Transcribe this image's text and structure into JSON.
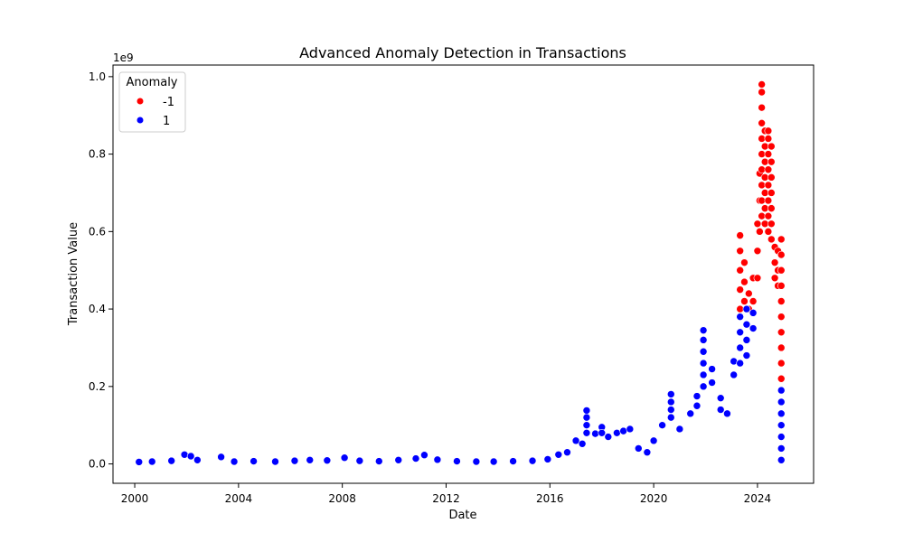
{
  "chart_data": {
    "type": "scatter",
    "title": "Advanced Anomaly Detection in Transactions",
    "xlabel": "Date",
    "ylabel": "Transaction Value",
    "y_scale_label": "1e9",
    "xlim": [
      "1999-03-01",
      "2026-03-01"
    ],
    "ylim": [
      -0.05,
      1.03
    ],
    "y_unit_multiplier": 1000000000,
    "x_ticks": [
      "2000",
      "2004",
      "2008",
      "2012",
      "2016",
      "2020",
      "2024"
    ],
    "y_ticks": [
      "0.0",
      "0.2",
      "0.4",
      "0.6",
      "0.8",
      "1.0"
    ],
    "grid": false,
    "legend": {
      "title": "Anomaly",
      "placement": "top-left",
      "entries": [
        {
          "label": "-1",
          "color": "#ff0000"
        },
        {
          "label": "1",
          "color": "#0000ff"
        }
      ]
    },
    "series": [
      {
        "name": "-1",
        "color": "#ff0000",
        "points": [
          [
            "2023-05-01",
            0.59
          ],
          [
            "2023-05-01",
            0.55
          ],
          [
            "2023-05-01",
            0.5
          ],
          [
            "2023-05-01",
            0.45
          ],
          [
            "2023-05-01",
            0.4
          ],
          [
            "2023-07-01",
            0.52
          ],
          [
            "2023-07-01",
            0.47
          ],
          [
            "2023-07-01",
            0.42
          ],
          [
            "2023-09-01",
            0.44
          ],
          [
            "2023-09-01",
            0.4
          ],
          [
            "2023-11-01",
            0.48
          ],
          [
            "2023-11-01",
            0.42
          ],
          [
            "2024-01-01",
            0.62
          ],
          [
            "2024-01-01",
            0.55
          ],
          [
            "2024-01-01",
            0.48
          ],
          [
            "2024-02-01",
            0.75
          ],
          [
            "2024-02-01",
            0.68
          ],
          [
            "2024-02-01",
            0.6
          ],
          [
            "2024-03-01",
            0.98
          ],
          [
            "2024-03-01",
            0.96
          ],
          [
            "2024-03-01",
            0.92
          ],
          [
            "2024-03-01",
            0.88
          ],
          [
            "2024-03-01",
            0.84
          ],
          [
            "2024-03-01",
            0.8
          ],
          [
            "2024-03-01",
            0.76
          ],
          [
            "2024-03-01",
            0.72
          ],
          [
            "2024-03-01",
            0.68
          ],
          [
            "2024-03-01",
            0.64
          ],
          [
            "2024-04-15",
            0.86
          ],
          [
            "2024-04-15",
            0.82
          ],
          [
            "2024-04-15",
            0.78
          ],
          [
            "2024-04-15",
            0.74
          ],
          [
            "2024-04-15",
            0.7
          ],
          [
            "2024-04-15",
            0.66
          ],
          [
            "2024-04-15",
            0.62
          ],
          [
            "2024-06-01",
            0.86
          ],
          [
            "2024-06-01",
            0.84
          ],
          [
            "2024-06-01",
            0.8
          ],
          [
            "2024-06-01",
            0.76
          ],
          [
            "2024-06-01",
            0.72
          ],
          [
            "2024-06-01",
            0.68
          ],
          [
            "2024-06-01",
            0.64
          ],
          [
            "2024-06-01",
            0.6
          ],
          [
            "2024-07-15",
            0.82
          ],
          [
            "2024-07-15",
            0.78
          ],
          [
            "2024-07-15",
            0.74
          ],
          [
            "2024-07-15",
            0.7
          ],
          [
            "2024-07-15",
            0.66
          ],
          [
            "2024-07-15",
            0.62
          ],
          [
            "2024-07-15",
            0.58
          ],
          [
            "2024-09-01",
            0.56
          ],
          [
            "2024-09-01",
            0.52
          ],
          [
            "2024-09-01",
            0.48
          ],
          [
            "2024-10-15",
            0.55
          ],
          [
            "2024-10-15",
            0.5
          ],
          [
            "2024-10-15",
            0.46
          ],
          [
            "2024-12-01",
            0.58
          ],
          [
            "2024-12-01",
            0.54
          ],
          [
            "2024-12-01",
            0.5
          ],
          [
            "2024-12-01",
            0.46
          ],
          [
            "2024-12-01",
            0.42
          ],
          [
            "2024-12-01",
            0.38
          ],
          [
            "2024-12-01",
            0.34
          ],
          [
            "2024-12-01",
            0.3
          ],
          [
            "2024-12-01",
            0.26
          ],
          [
            "2024-12-01",
            0.22
          ]
        ]
      },
      {
        "name": "1",
        "color": "#0000ff",
        "points": [
          [
            "2000-03-01",
            0.005
          ],
          [
            "2000-09-01",
            0.006
          ],
          [
            "2001-06-01",
            0.008
          ],
          [
            "2001-12-01",
            0.024
          ],
          [
            "2002-03-01",
            0.02
          ],
          [
            "2002-06-01",
            0.01
          ],
          [
            "2003-05-01",
            0.018
          ],
          [
            "2003-11-01",
            0.006
          ],
          [
            "2004-08-01",
            0.007
          ],
          [
            "2005-06-01",
            0.006
          ],
          [
            "2006-03-01",
            0.008
          ],
          [
            "2006-10-01",
            0.01
          ],
          [
            "2007-06-01",
            0.009
          ],
          [
            "2008-02-01",
            0.016
          ],
          [
            "2008-09-01",
            0.008
          ],
          [
            "2009-06-01",
            0.007
          ],
          [
            "2010-03-01",
            0.01
          ],
          [
            "2010-11-01",
            0.014
          ],
          [
            "2011-03-01",
            0.023
          ],
          [
            "2011-09-01",
            0.011
          ],
          [
            "2012-06-01",
            0.007
          ],
          [
            "2013-03-01",
            0.006
          ],
          [
            "2013-11-01",
            0.006
          ],
          [
            "2014-08-01",
            0.007
          ],
          [
            "2015-05-01",
            0.008
          ],
          [
            "2015-12-01",
            0.012
          ],
          [
            "2016-05-01",
            0.024
          ],
          [
            "2016-09-01",
            0.03
          ],
          [
            "2017-01-01",
            0.06
          ],
          [
            "2017-04-01",
            0.052
          ],
          [
            "2017-06-01",
            0.138
          ],
          [
            "2017-06-01",
            0.12
          ],
          [
            "2017-06-01",
            0.1
          ],
          [
            "2017-06-01",
            0.08
          ],
          [
            "2017-10-01",
            0.078
          ],
          [
            "2018-01-01",
            0.095
          ],
          [
            "2018-01-01",
            0.08
          ],
          [
            "2018-04-01",
            0.07
          ],
          [
            "2018-08-01",
            0.08
          ],
          [
            "2018-11-01",
            0.085
          ],
          [
            "2019-02-01",
            0.09
          ],
          [
            "2019-06-01",
            0.04
          ],
          [
            "2019-10-01",
            0.03
          ],
          [
            "2020-01-01",
            0.06
          ],
          [
            "2020-05-01",
            0.1
          ],
          [
            "2020-09-01",
            0.18
          ],
          [
            "2020-09-01",
            0.16
          ],
          [
            "2020-09-01",
            0.14
          ],
          [
            "2020-09-01",
            0.12
          ],
          [
            "2021-01-01",
            0.09
          ],
          [
            "2021-06-01",
            0.13
          ],
          [
            "2021-09-01",
            0.175
          ],
          [
            "2021-09-01",
            0.15
          ],
          [
            "2021-12-01",
            0.345
          ],
          [
            "2021-12-01",
            0.32
          ],
          [
            "2021-12-01",
            0.29
          ],
          [
            "2021-12-01",
            0.26
          ],
          [
            "2021-12-01",
            0.23
          ],
          [
            "2021-12-01",
            0.2
          ],
          [
            "2022-04-01",
            0.245
          ],
          [
            "2022-04-01",
            0.21
          ],
          [
            "2022-08-01",
            0.17
          ],
          [
            "2022-08-01",
            0.14
          ],
          [
            "2022-11-01",
            0.13
          ],
          [
            "2023-02-01",
            0.265
          ],
          [
            "2023-02-01",
            0.23
          ],
          [
            "2023-05-01",
            0.38
          ],
          [
            "2023-05-01",
            0.34
          ],
          [
            "2023-05-01",
            0.3
          ],
          [
            "2023-05-01",
            0.26
          ],
          [
            "2023-08-01",
            0.4
          ],
          [
            "2023-08-01",
            0.36
          ],
          [
            "2023-08-01",
            0.32
          ],
          [
            "2023-08-01",
            0.28
          ],
          [
            "2023-11-01",
            0.39
          ],
          [
            "2023-11-01",
            0.35
          ],
          [
            "2024-12-01",
            0.19
          ],
          [
            "2024-12-01",
            0.16
          ],
          [
            "2024-12-01",
            0.13
          ],
          [
            "2024-12-01",
            0.1
          ],
          [
            "2024-12-01",
            0.07
          ],
          [
            "2024-12-01",
            0.04
          ],
          [
            "2024-12-01",
            0.01
          ]
        ]
      }
    ]
  }
}
